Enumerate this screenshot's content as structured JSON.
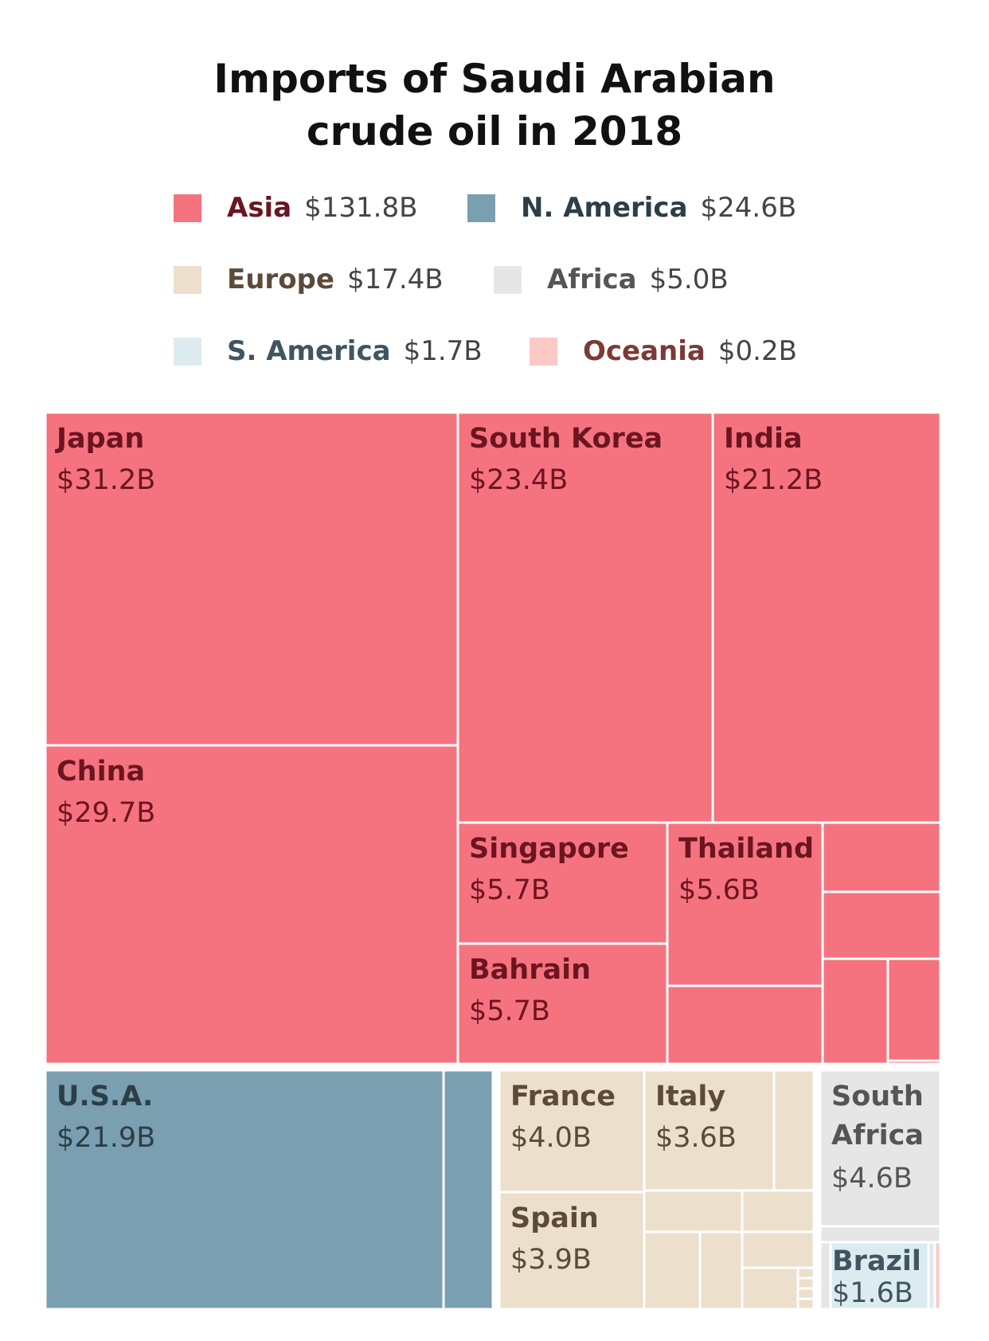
{
  "chart_data": {
    "type": "treemap",
    "title": "Imports of Saudi Arabian crude oil in 2018",
    "title_lines": [
      "Imports of Saudi Arabian",
      "crude oil in 2018"
    ],
    "legend": [
      {
        "region": "Asia",
        "value": "$131.8B",
        "color": "#f5737f",
        "label_color": "#6b1520"
      },
      {
        "region": "N. America",
        "value": "$24.6B",
        "color": "#7a9fb0",
        "label_color": "#2c3e46"
      },
      {
        "region": "Europe",
        "value": "$17.4B",
        "color": "#ecdfcc",
        "label_color": "#5c4a3a"
      },
      {
        "region": "Africa",
        "value": "$5.0B",
        "color": "#e6e6e6",
        "label_color": "#555555"
      },
      {
        "region": "S. America",
        "value": "$1.7B",
        "color": "#dcebf0",
        "label_color": "#3f5560"
      },
      {
        "region": "Oceania",
        "value": "$0.2B",
        "color": "#fbc9c6",
        "label_color": "#7a3a35"
      }
    ],
    "countries": [
      {
        "name": "Japan",
        "value": "$31.2B",
        "region": "Asia"
      },
      {
        "name": "China",
        "value": "$29.7B",
        "region": "Asia"
      },
      {
        "name": "South Korea",
        "value": "$23.4B",
        "region": "Asia"
      },
      {
        "name": "India",
        "value": "$21.2B",
        "region": "Asia"
      },
      {
        "name": "Singapore",
        "value": "$5.7B",
        "region": "Asia"
      },
      {
        "name": "Bahrain",
        "value": "$5.7B",
        "region": "Asia"
      },
      {
        "name": "Thailand",
        "value": "$5.6B",
        "region": "Asia"
      },
      {
        "name": "U.S.A.",
        "value": "$21.9B",
        "region": "N. America"
      },
      {
        "name": "France",
        "value": "$4.0B",
        "region": "Europe"
      },
      {
        "name": "Spain",
        "value": "$3.9B",
        "region": "Europe"
      },
      {
        "name": "Italy",
        "value": "$3.6B",
        "region": "Europe"
      },
      {
        "name": "South Africa",
        "value": "$4.6B",
        "region": "Africa"
      },
      {
        "name": "Brazil",
        "value": "$1.6B",
        "region": "S. America"
      }
    ]
  }
}
